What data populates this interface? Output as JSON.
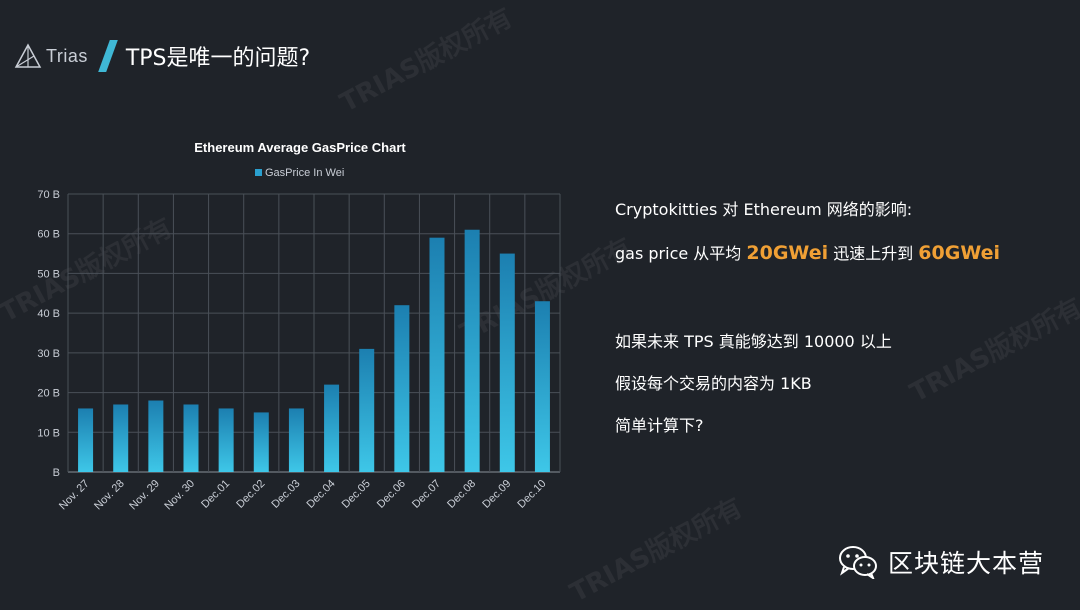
{
  "header": {
    "logo_text": "Trias",
    "title": "TPS是唯一的问题?"
  },
  "watermark_text": "TRIAS版权所有",
  "info": {
    "line1": "Cryptokitties 对 Ethereum 网络的影响:",
    "line2_prefix": "gas price 从平均 ",
    "line2_hl1": "20GWei",
    "line2_mid": " 迅速上升到 ",
    "line2_hl2": "60GWei",
    "line3": "如果未来 TPS 真能够达到 10000 以上",
    "line4": "假设每个交易的内容为 1KB",
    "line5": "简单计算下?"
  },
  "footer": {
    "brand": "区块链大本营",
    "icon": "wechat-icon"
  },
  "colors": {
    "background": "#1f2329",
    "accent": "#3fb8d6",
    "highlight": "#f0a035",
    "bar_top": "#1c7fb0",
    "bar_bottom": "#3ec7e8"
  },
  "chart_data": {
    "type": "bar",
    "title": "Ethereum Average GasPrice Chart",
    "legend": {
      "label": "GasPrice In Wei",
      "position": "top"
    },
    "categories": [
      "Nov. 27",
      "Nov. 28",
      "Nov. 29",
      "Nov. 30",
      "Dec.01",
      "Dec.02",
      "Dec.03",
      "Dec.04",
      "Dec.05",
      "Dec.06",
      "Dec.07",
      "Dec.08",
      "Dec.09",
      "Dec.10"
    ],
    "series": [
      {
        "name": "GasPrice In Wei",
        "values": [
          16,
          17,
          18,
          17,
          16,
          15,
          16,
          22,
          31,
          42,
          59,
          61,
          55,
          43
        ]
      }
    ],
    "y_ticks": [
      "B",
      "10 B",
      "20 B",
      "30 B",
      "40 B",
      "50 B",
      "60 B",
      "70 B"
    ],
    "ylim": [
      0,
      70
    ],
    "grid": true
  }
}
